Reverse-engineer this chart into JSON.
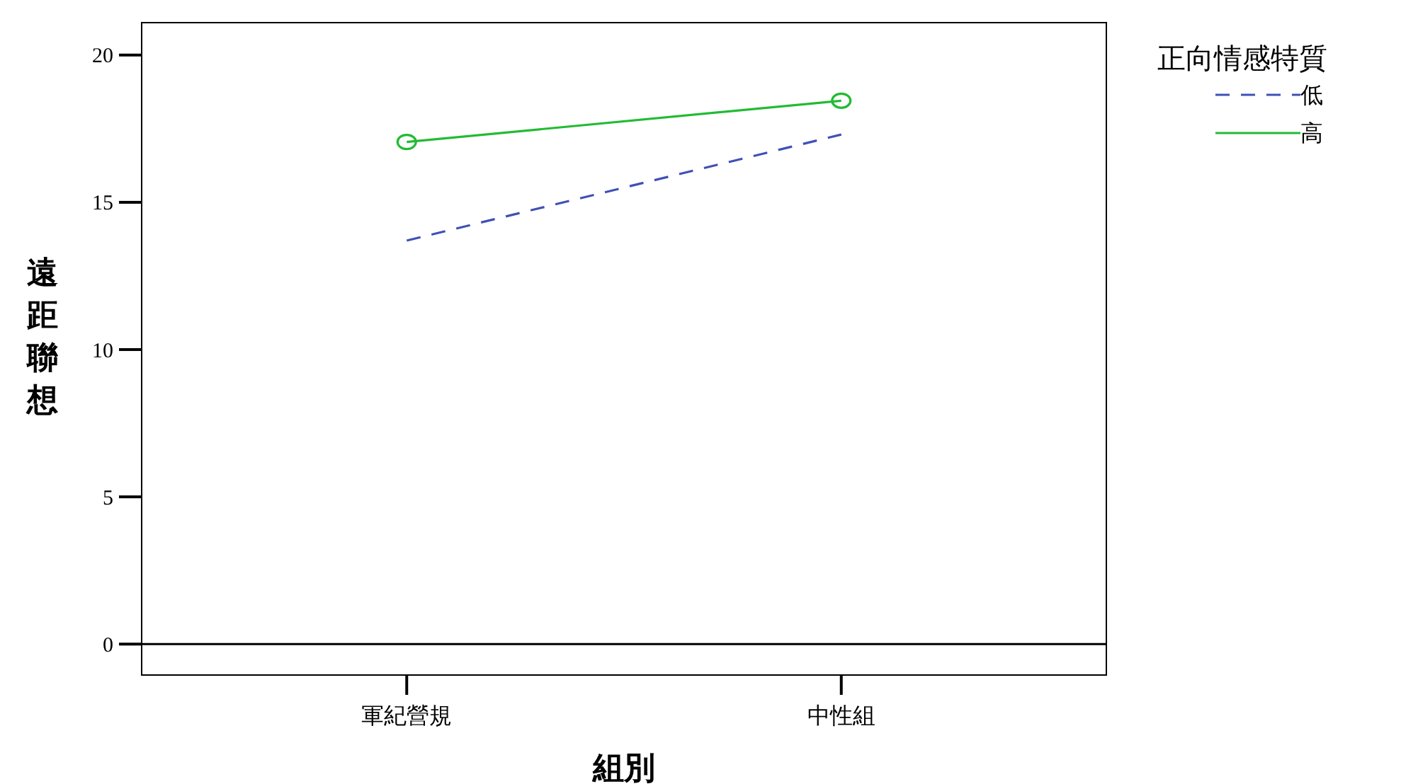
{
  "chart_data": {
    "type": "line",
    "xlabel": "組別",
    "ylabel": "遠距聯想",
    "legend_title": "正向情感特質",
    "categories": [
      "軍紀營規",
      "中性組"
    ],
    "series": [
      {
        "name": "低",
        "color": "#3f51b5",
        "values": [
          13.7,
          17.3
        ],
        "line_style": "dashed",
        "marker": "none"
      },
      {
        "name": "高",
        "color": "#22bb33",
        "values": [
          17.05,
          18.45
        ],
        "line_style": "solid",
        "marker": "circle"
      }
    ],
    "ylim": [
      -1.05,
      21.1
    ],
    "yticks": [
      0,
      5,
      10,
      15,
      20
    ],
    "ref_lines": [
      {
        "axis": "y",
        "value": 0,
        "color": "#000000"
      }
    ],
    "legend": "top right",
    "grid": false
  }
}
